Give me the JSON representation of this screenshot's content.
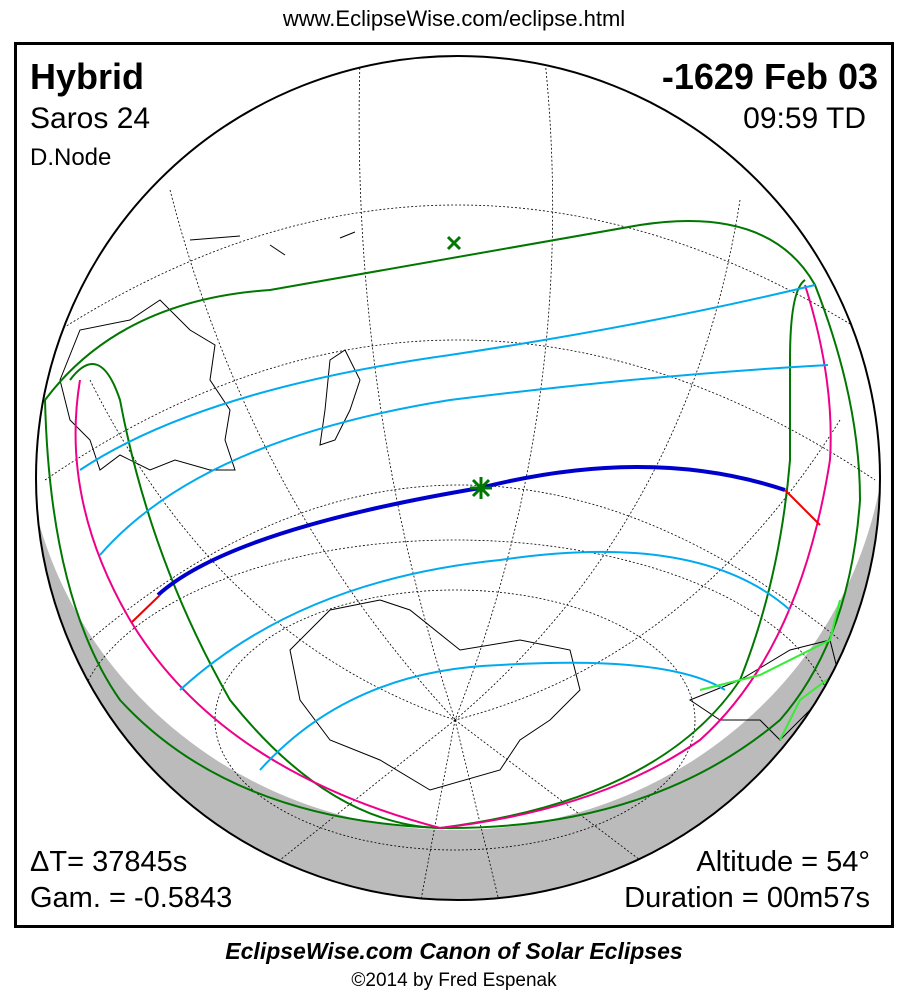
{
  "header": {
    "url": "www.EclipseWise.com/eclipse.html"
  },
  "eclipse": {
    "type": "Hybrid",
    "date": "-1629 Feb 03",
    "saros": "Saros  24",
    "time": "09:59 TD",
    "node": "D.Node",
    "delta_t": "ΔT=  37845s",
    "gamma": "Gam. = -0.5843",
    "altitude": "Altitude = 54°",
    "duration": "Duration = 00m57s"
  },
  "footer": {
    "title": "EclipseWise.com Canon of Solar Eclipses",
    "copyright": "©2014 by Fred Espenak"
  },
  "colors": {
    "penumbral_limits": "#007700",
    "partial_lines": "#00aaee",
    "central_path": "#0000cc",
    "rise_set_curves": "#ee0088",
    "path_ends": "#ee0000",
    "night": "#bbbbbb",
    "sunrise_sunset_border": "#33ee33"
  },
  "markers": {
    "greatest_eclipse": "star-marker",
    "subsolar_point": "x-marker"
  }
}
